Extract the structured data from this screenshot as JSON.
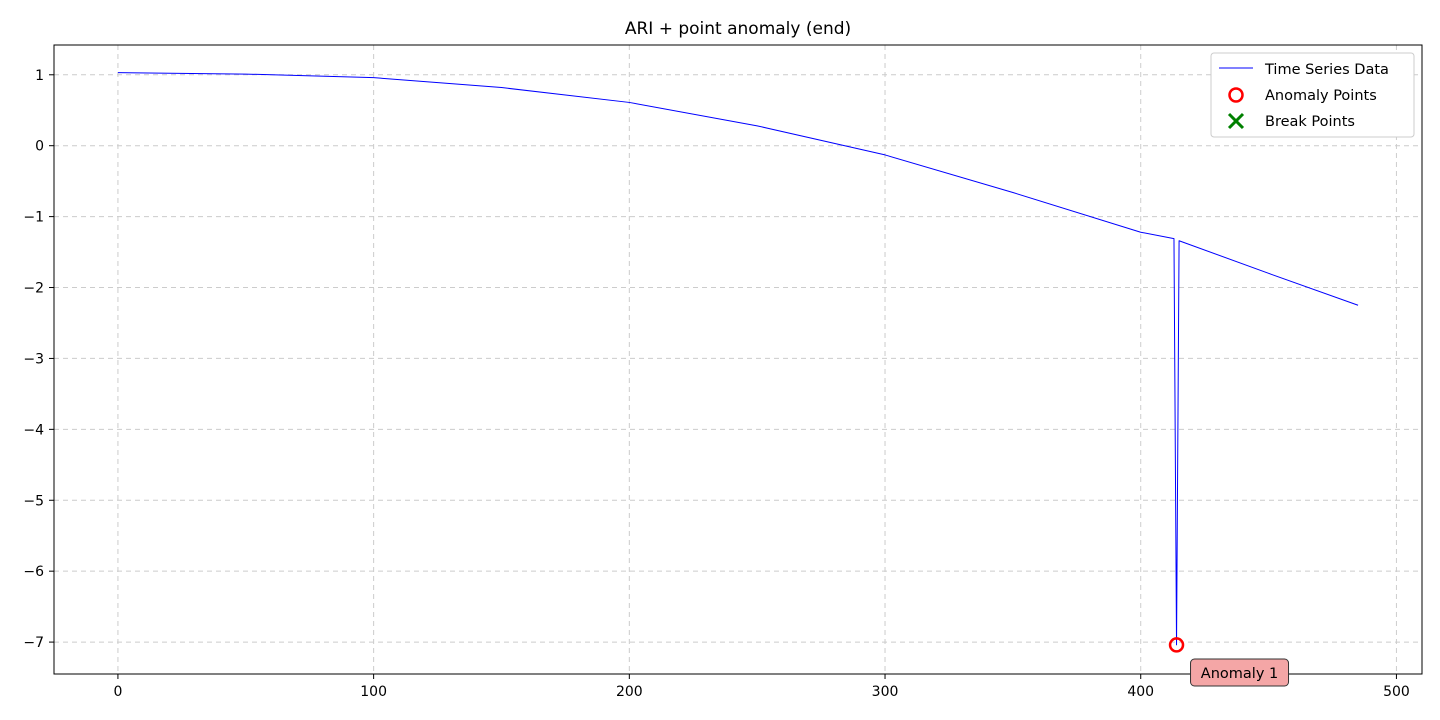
{
  "chart_data": {
    "type": "line",
    "title": "ARI + point anomaly (end)",
    "xlabel": "",
    "ylabel": "",
    "xlim": [
      -25,
      510
    ],
    "ylim": [
      -7.45,
      1.42
    ],
    "xticks": [
      0,
      100,
      200,
      300,
      400,
      500
    ],
    "yticks": [
      1,
      0,
      -1,
      -2,
      -3,
      -4,
      -5,
      -6,
      -7
    ],
    "xtick_labels": [
      "0",
      "100",
      "200",
      "300",
      "400",
      "500"
    ],
    "ytick_labels": [
      "1",
      "0",
      "−1",
      "−2",
      "−3",
      "−4",
      "−5",
      "−6",
      "−7"
    ],
    "grid": true,
    "legend_position": "top-right",
    "series": [
      {
        "name": "Time Series Data",
        "color": "#0000ff",
        "x": [
          0,
          50,
          100,
          150,
          200,
          250,
          300,
          350,
          400,
          413,
          414,
          415,
          450,
          485
        ],
        "y": [
          1.03,
          1.01,
          0.96,
          0.82,
          0.61,
          0.28,
          -0.13,
          -0.66,
          -1.22,
          -1.31,
          -7.04,
          -1.34,
          -1.8,
          -2.25
        ]
      }
    ],
    "anomaly_points": {
      "name": "Anomaly Points",
      "color": "#ff0000",
      "points": [
        {
          "x": 414,
          "y": -7.04
        }
      ]
    },
    "break_points": {
      "name": "Break Points",
      "color": "#008000",
      "points": []
    },
    "annotations": [
      {
        "text": "Anomaly 1",
        "x": 414,
        "y": -7.04,
        "bg_color": "#f4a6a6"
      }
    ]
  }
}
